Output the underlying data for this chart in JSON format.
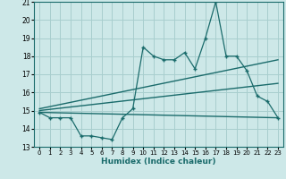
{
  "xlabel": "Humidex (Indice chaleur)",
  "bg_color": "#cde8e8",
  "line_color": "#1a6b6b",
  "grid_color": "#a8cece",
  "ylim": [
    13,
    21
  ],
  "xlim": [
    -0.5,
    23.5
  ],
  "yticks": [
    13,
    14,
    15,
    16,
    17,
    18,
    19,
    20,
    21
  ],
  "xticks": [
    0,
    1,
    2,
    3,
    4,
    5,
    6,
    7,
    8,
    9,
    10,
    11,
    12,
    13,
    14,
    15,
    16,
    17,
    18,
    19,
    20,
    21,
    22,
    23
  ],
  "main_x": [
    0,
    1,
    2,
    3,
    4,
    5,
    6,
    7,
    8,
    9,
    10,
    11,
    12,
    13,
    14,
    15,
    16,
    17,
    18,
    19,
    20,
    21,
    22,
    23
  ],
  "main_y": [
    14.9,
    14.6,
    14.6,
    14.6,
    13.6,
    13.6,
    13.5,
    13.4,
    14.6,
    15.1,
    18.5,
    18.0,
    17.8,
    17.8,
    18.2,
    17.3,
    19.0,
    21.0,
    18.0,
    18.0,
    17.2,
    15.8,
    15.5,
    14.6
  ],
  "flat_line_x": [
    0,
    23
  ],
  "flat_line_y": [
    14.9,
    14.6
  ],
  "mid_line_x": [
    0,
    23
  ],
  "mid_line_y": [
    15.0,
    16.5
  ],
  "upper_line_x": [
    0,
    23
  ],
  "upper_line_y": [
    15.1,
    17.8
  ]
}
